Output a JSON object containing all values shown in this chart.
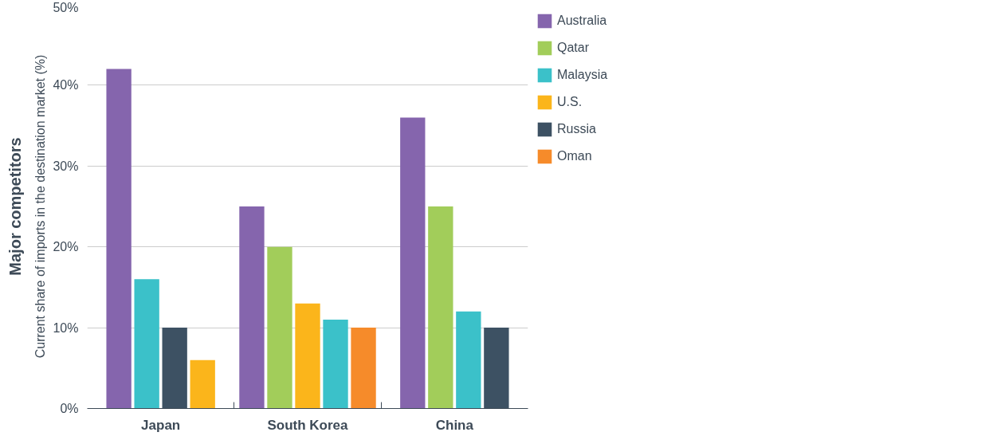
{
  "chart_data": {
    "type": "bar",
    "title": "Major competitors",
    "ylabel": "Current share of imports in the destination market (%)",
    "categories": [
      "Japan",
      "South Korea",
      "China"
    ],
    "series": [
      {
        "name": "Australia",
        "color": "#8565ad",
        "values": [
          42,
          25,
          36
        ]
      },
      {
        "name": "Qatar",
        "color": "#a2cd5a",
        "values": [
          null,
          20,
          25
        ]
      },
      {
        "name": "Malaysia",
        "color": "#3bc1c9",
        "values": [
          16,
          11,
          12
        ]
      },
      {
        "name": "U.S.",
        "color": "#fbb51b",
        "values": [
          6,
          13,
          null
        ]
      },
      {
        "name": "Russia",
        "color": "#3d5163",
        "values": [
          10,
          null,
          10
        ]
      },
      {
        "name": "Oman",
        "color": "#f68b2a",
        "values": [
          null,
          10,
          null
        ]
      }
    ],
    "ylim": [
      0,
      50
    ],
    "yticks": [
      {
        "value": 0,
        "label": "0%"
      },
      {
        "value": 10,
        "label": "10%"
      },
      {
        "value": 20,
        "label": "20%"
      },
      {
        "value": 30,
        "label": "30%"
      },
      {
        "value": 40,
        "label": "40%"
      },
      {
        "value": 50,
        "label": "50%"
      }
    ],
    "grid": "y",
    "legend": "right"
  }
}
